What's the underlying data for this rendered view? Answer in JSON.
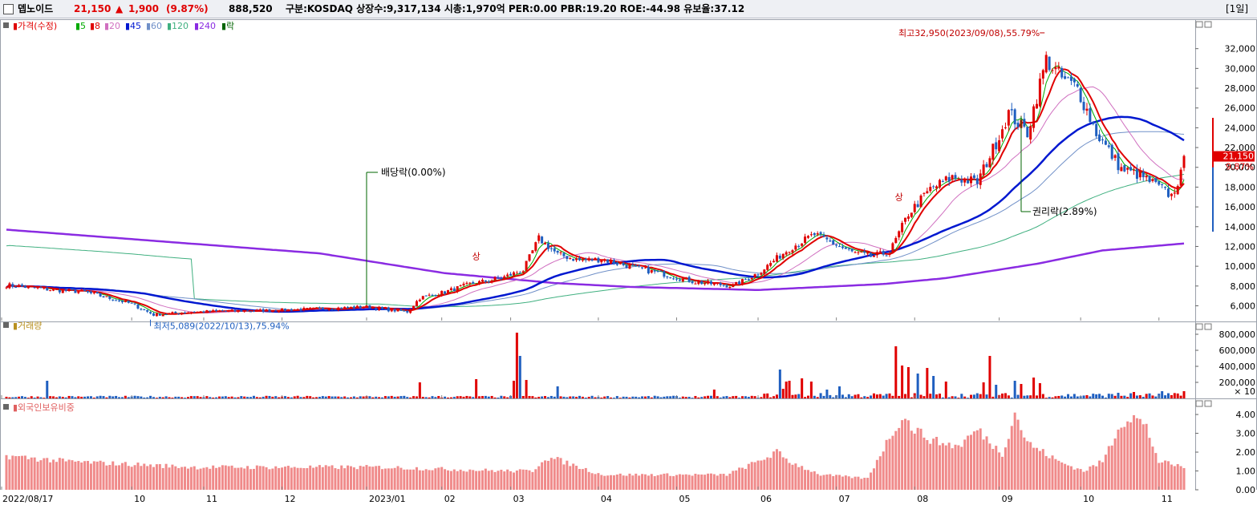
{
  "header": {
    "stock_name": "뎁노이드",
    "price": "21,150",
    "change_arrow": "▲",
    "change": "1,900",
    "change_pct": "(9.87%)",
    "volume": "888,520",
    "info": "구분:KOSDAQ 상장수:9,317,134 시총:1,970억 PER:0.00 PBR:19.20 ROE:-44.98 유보율:37.12",
    "period": "[1일]"
  },
  "colors": {
    "up": "#e00000",
    "down": "#1f5fc0",
    "ma5": "#00aa00",
    "ma8": "#e00000",
    "ma20": "#d070c0",
    "ma45": "#0018d0",
    "ma60": "#7090c8",
    "ma120": "#40b080",
    "ma240": "#8a2be2",
    "foreign": "#f08a8a",
    "annotation": "#006400"
  },
  "chart_data": [
    {
      "type": "candlestick",
      "title": "가격(수정)",
      "legend": [
        {
          "label": "5",
          "color": "#00aa00"
        },
        {
          "label": "8",
          "color": "#e00000"
        },
        {
          "label": "20",
          "color": "#d070c0"
        },
        {
          "label": "45",
          "color": "#0018d0"
        },
        {
          "label": "60",
          "color": "#7090c8"
        },
        {
          "label": "120",
          "color": "#40b080"
        },
        {
          "label": "240",
          "color": "#8a2be2"
        },
        {
          "label": "락",
          "color": "#006400"
        }
      ],
      "x_ticks": [
        "2022/08/17",
        "10",
        "11",
        "12",
        "2023/01",
        "02",
        "03",
        "04",
        "05",
        "06",
        "07",
        "08",
        "09",
        "10",
        "11"
      ],
      "y_ticks": [
        "32,000",
        "30,000",
        "28,000",
        "26,000",
        "24,000",
        "22,000",
        "20,000",
        "18,000",
        "16,000",
        "14,000",
        "12,000",
        "10,000",
        "8,000",
        "6,000"
      ],
      "ylim": [
        4500,
        34000
      ],
      "series": {
        "close_keypoints": [
          [
            0,
            8100
          ],
          [
            15,
            7600
          ],
          [
            25,
            7400
          ],
          [
            40,
            6200
          ],
          [
            47,
            5089
          ],
          [
            60,
            5400
          ],
          [
            80,
            5500
          ],
          [
            100,
            5700
          ],
          [
            115,
            5900
          ],
          [
            122,
            5600
          ],
          [
            128,
            5400
          ],
          [
            132,
            6800
          ],
          [
            140,
            7400
          ],
          [
            148,
            8200
          ],
          [
            158,
            8800
          ],
          [
            165,
            9600
          ],
          [
            170,
            12800
          ],
          [
            176,
            11200
          ],
          [
            183,
            10600
          ],
          [
            190,
            10700
          ],
          [
            200,
            9900
          ],
          [
            210,
            9200
          ],
          [
            220,
            8400
          ],
          [
            232,
            8000
          ],
          [
            240,
            9300
          ],
          [
            250,
            11800
          ],
          [
            258,
            13200
          ],
          [
            262,
            12600
          ],
          [
            270,
            11400
          ],
          [
            276,
            11000
          ],
          [
            282,
            11400
          ],
          [
            288,
            15300
          ],
          [
            295,
            17800
          ],
          [
            302,
            19000
          ],
          [
            310,
            18500
          ],
          [
            316,
            22500
          ],
          [
            320,
            25500
          ],
          [
            326,
            23500
          ],
          [
            332,
            30900
          ],
          [
            337,
            29000
          ],
          [
            342,
            28000
          ],
          [
            348,
            23500
          ],
          [
            356,
            19800
          ],
          [
            362,
            19200
          ],
          [
            368,
            18000
          ],
          [
            372,
            17100
          ],
          [
            375,
            19250
          ],
          [
            376,
            21150
          ]
        ],
        "ma240_keypoints": [
          [
            0,
            13700
          ],
          [
            50,
            12500
          ],
          [
            100,
            11300
          ],
          [
            140,
            9300
          ],
          [
            175,
            8300
          ],
          [
            200,
            7900
          ],
          [
            240,
            7600
          ],
          [
            280,
            8200
          ],
          [
            300,
            8800
          ],
          [
            330,
            10300
          ],
          [
            350,
            11600
          ],
          [
            376,
            12300
          ]
        ]
      },
      "annotations": [
        {
          "text": "최고32,950(2023/09/08),55.79%",
          "x_index": 332,
          "value": 32950
        },
        {
          "text": "최저5,089(2022/10/13),75.94%",
          "x_index": 47,
          "value": 5089
        },
        {
          "text": "배당락(0.00%)",
          "x_index": 115,
          "value": 5900
        },
        {
          "text": "권리락(2.89%)",
          "x_index": 324,
          "value": 25500
        },
        {
          "text": "상",
          "x_index": 150,
          "value": 10200
        },
        {
          "text": "상",
          "x_index": 285,
          "value": 16200
        }
      ],
      "last_price_label": "21,150",
      "last_pct_label": "9.87%"
    },
    {
      "type": "bar",
      "title": "거래량",
      "y_ticks": [
        "800,000",
        "600,000",
        "400,000",
        "200,000"
      ],
      "unit_label": "× 10",
      "ylim": [
        0,
        900000
      ],
      "spikes": [
        [
          13,
          220000
        ],
        [
          132,
          200000
        ],
        [
          150,
          240000
        ],
        [
          162,
          220000
        ],
        [
          163,
          820000
        ],
        [
          164,
          530000
        ],
        [
          166,
          230000
        ],
        [
          176,
          150000
        ],
        [
          226,
          110000
        ],
        [
          247,
          360000
        ],
        [
          248,
          120000
        ],
        [
          249,
          210000
        ],
        [
          250,
          220000
        ],
        [
          254,
          250000
        ],
        [
          257,
          210000
        ],
        [
          262,
          110000
        ],
        [
          266,
          150000
        ],
        [
          284,
          650000
        ],
        [
          286,
          410000
        ],
        [
          288,
          390000
        ],
        [
          291,
          310000
        ],
        [
          294,
          380000
        ],
        [
          296,
          280000
        ],
        [
          300,
          210000
        ],
        [
          312,
          200000
        ],
        [
          314,
          530000
        ],
        [
          316,
          170000
        ],
        [
          322,
          220000
        ],
        [
          324,
          180000
        ],
        [
          328,
          260000
        ],
        [
          330,
          190000
        ],
        [
          355,
          70000
        ],
        [
          360,
          80000
        ],
        [
          369,
          90000
        ],
        [
          376,
          90000
        ]
      ]
    },
    {
      "type": "bar",
      "title": "외국인보유비중",
      "y_ticks": [
        "4.00",
        "3.00",
        "2.00",
        "1.00",
        "0.00"
      ],
      "ylim": [
        0,
        4.6
      ],
      "keypoints": [
        [
          0,
          1.8
        ],
        [
          20,
          1.5
        ],
        [
          60,
          1.2
        ],
        [
          120,
          1.2
        ],
        [
          160,
          1.0
        ],
        [
          168,
          1.0
        ],
        [
          172,
          1.7
        ],
        [
          176,
          1.6
        ],
        [
          190,
          0.8
        ],
        [
          230,
          0.8
        ],
        [
          240,
          1.5
        ],
        [
          246,
          2.0
        ],
        [
          250,
          1.5
        ],
        [
          260,
          0.8
        ],
        [
          275,
          0.6
        ],
        [
          280,
          2.2
        ],
        [
          286,
          3.9
        ],
        [
          290,
          3.2
        ],
        [
          296,
          2.6
        ],
        [
          304,
          2.3
        ],
        [
          310,
          3.2
        ],
        [
          318,
          1.9
        ],
        [
          322,
          4.1
        ],
        [
          326,
          2.5
        ],
        [
          336,
          1.5
        ],
        [
          344,
          1.0
        ],
        [
          350,
          1.5
        ],
        [
          356,
          3.6
        ],
        [
          360,
          3.9
        ],
        [
          364,
          3.3
        ],
        [
          368,
          1.5
        ],
        [
          376,
          1.2
        ]
      ]
    }
  ]
}
